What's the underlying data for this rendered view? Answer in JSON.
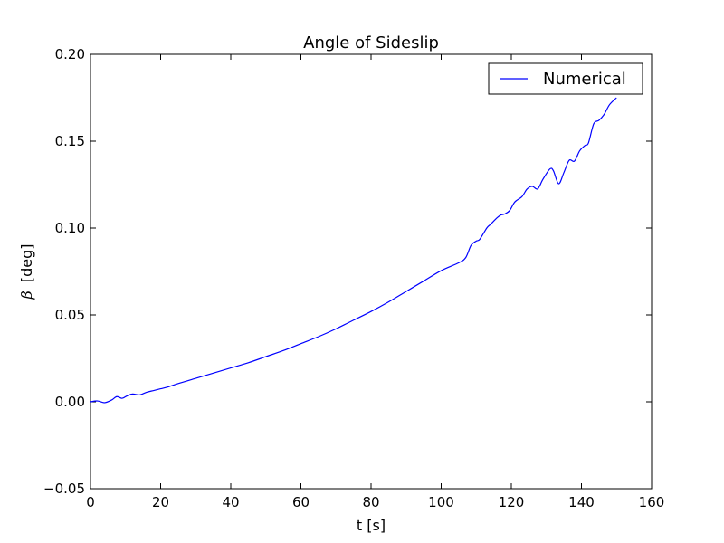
{
  "chart_data": {
    "type": "line",
    "title": "Angle of Sideslip",
    "xlabel": "t [s]",
    "ylabel_symbol": "β",
    "ylabel_unit": "[deg]",
    "xlim": [
      0,
      160
    ],
    "ylim": [
      -0.05,
      0.2
    ],
    "xticks": [
      0,
      20,
      40,
      60,
      80,
      100,
      120,
      140,
      160
    ],
    "xtick_labels": [
      "0",
      "20",
      "40",
      "60",
      "80",
      "100",
      "120",
      "140",
      "160"
    ],
    "yticks": [
      -0.05,
      0.0,
      0.05,
      0.1,
      0.15,
      0.2
    ],
    "ytick_labels": [
      "−0.05",
      "0.00",
      "0.05",
      "0.10",
      "0.15",
      "0.20"
    ],
    "grid": false,
    "legend_position": "top-right",
    "series": [
      {
        "name": "Numerical",
        "color": "#0000ff",
        "x": [
          0,
          2,
          4,
          6,
          7.5,
          9,
          10.5,
          12,
          14,
          16,
          18,
          20,
          22,
          25,
          30,
          35,
          40,
          45,
          50,
          55,
          60,
          65,
          70,
          75,
          80,
          85,
          90,
          95,
          100,
          105,
          107,
          108.5,
          110,
          111,
          113,
          114,
          116,
          117,
          118,
          119.5,
          121,
          123,
          124.5,
          126,
          127.5,
          129,
          131,
          132,
          133.5,
          135,
          136.5,
          138,
          139.5,
          141,
          142,
          143.5,
          145,
          146.5,
          148,
          150
        ],
        "y": [
          0.0,
          0.0005,
          -0.0005,
          0.001,
          0.003,
          0.002,
          0.0035,
          0.0045,
          0.004,
          0.0055,
          0.0065,
          0.0075,
          0.0085,
          0.0105,
          0.0135,
          0.0165,
          0.0195,
          0.0225,
          0.026,
          0.0295,
          0.0335,
          0.0375,
          0.042,
          0.047,
          0.052,
          0.0575,
          0.0635,
          0.0695,
          0.0755,
          0.08,
          0.083,
          0.09,
          0.0925,
          0.0935,
          0.1,
          0.102,
          0.106,
          0.1075,
          0.108,
          0.11,
          0.115,
          0.118,
          0.1225,
          0.124,
          0.1225,
          0.128,
          0.134,
          0.133,
          0.1255,
          0.132,
          0.139,
          0.1385,
          0.1445,
          0.1475,
          0.149,
          0.16,
          0.162,
          0.1655,
          0.171,
          0.175
        ]
      }
    ]
  }
}
